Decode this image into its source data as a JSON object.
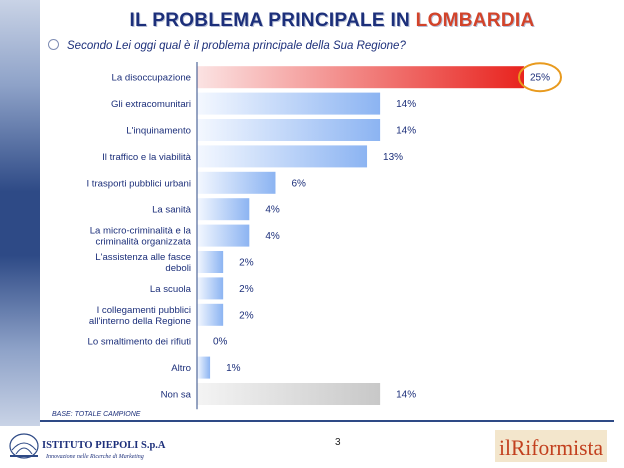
{
  "header": {
    "title_main": "IL PROBLEMA PRINCIPALE IN",
    "title_region": "LOMBARDIA",
    "question": "Secondo Lei oggi qual è il problema principale della Sua Regione?"
  },
  "footer": {
    "base_note": "BASE: TOTALE CAMPIONE",
    "page_number": "3",
    "left_logo_name": "ISTITUTO PIEPOLI S.p.A.",
    "left_logo_tagline": "Innovazione nelle Ricerche di Marketing",
    "right_logo_text": "ilRiformista"
  },
  "colors": {
    "title": "#1c2f7a",
    "title_accent": "#d2432a",
    "bar_highlight": "#e8231e",
    "bar_normal": "#8cb4f2",
    "bar_neutral": "#c8c8c8",
    "callout_circle": "#e89a1e",
    "axis": "#2e4a86"
  },
  "chart_data": {
    "type": "bar",
    "orientation": "horizontal",
    "categories": [
      [
        "La disoccupazione"
      ],
      [
        "Gli extracomunitari"
      ],
      [
        "L'inquinamento"
      ],
      [
        "Il traffico e la viabilità"
      ],
      [
        "I trasporti pubblici urbani"
      ],
      [
        "La sanità"
      ],
      [
        "La micro-criminalità e la",
        "criminalità organizzata"
      ],
      [
        "L'assistenza alle fasce",
        "deboli"
      ],
      [
        "La scuola"
      ],
      [
        "I collegamenti pubblici",
        "all'interno della Regione"
      ],
      [
        "Lo smaltimento dei rifiuti"
      ],
      [
        "Altro"
      ],
      [
        "Non sa"
      ]
    ],
    "values": [
      25,
      14,
      14,
      13,
      6,
      4,
      4,
      2,
      2,
      2,
      0,
      1,
      14
    ],
    "value_labels": [
      "25%",
      "14%",
      "14%",
      "13%",
      "6%",
      "4%",
      "4%",
      "2%",
      "2%",
      "2%",
      "0%",
      "1%",
      "14%"
    ],
    "highlighted_index": 0,
    "neutral_index": 12
  }
}
